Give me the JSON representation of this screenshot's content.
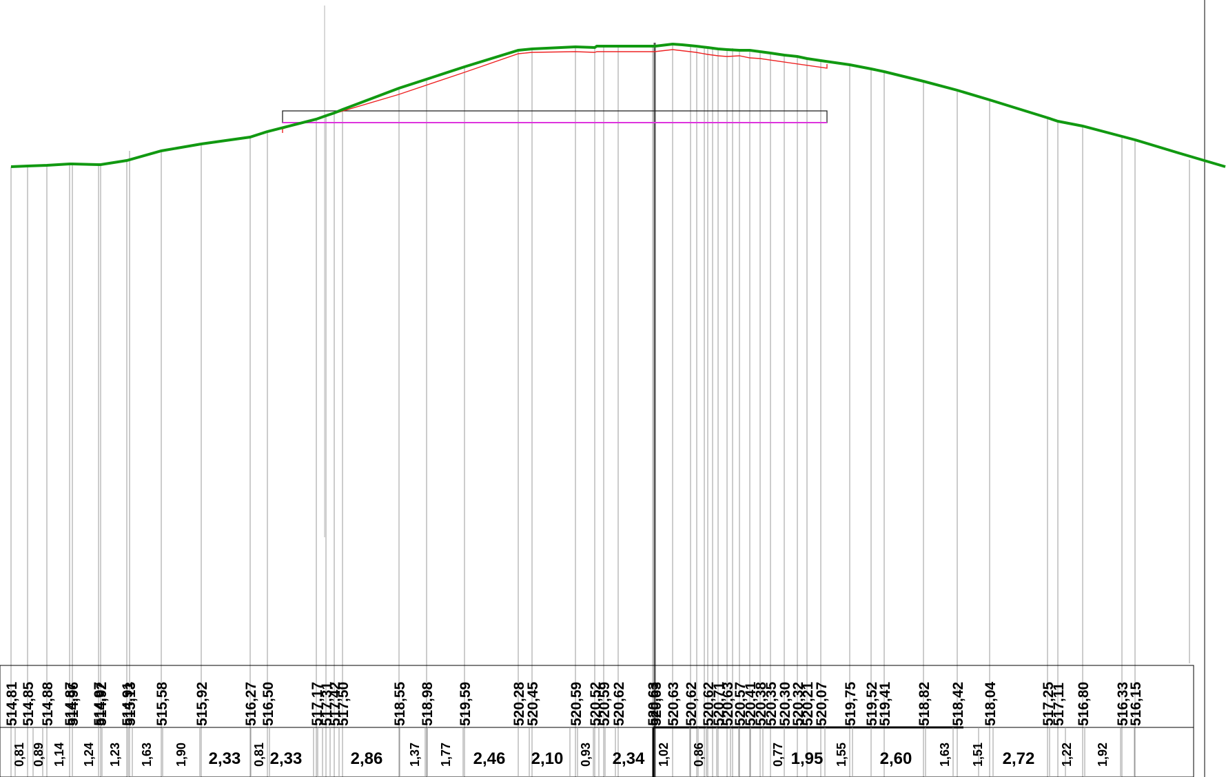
{
  "elevations": [
    "514,81",
    "514,85",
    "514,88",
    "514,87",
    "514,96",
    "514,97",
    "514,92",
    "514,91",
    "515,13",
    "515,58",
    "515,92",
    "516,27",
    "516,50",
    "517,17",
    "517,31",
    "517,42",
    "517,50",
    "518,55",
    "518,98",
    "519,59",
    "520,28",
    "520,45",
    "520,59",
    "520,52",
    "520,59",
    "520,62",
    "520,63",
    "520,63",
    "520,63",
    "520,62",
    "520,62",
    "520,71",
    "520,63",
    "520,57",
    "520,41",
    "520,38",
    "520,35",
    "520,30",
    "520,32",
    "520,21",
    "520,07",
    "519,75",
    "519,52",
    "519,41",
    "518,82",
    "518,42",
    "518,04",
    "517,25",
    "517,11",
    "516,80",
    "516,33",
    "516,15"
  ],
  "distances": [
    "0,81",
    "0,89",
    "1,14",
    "1,24",
    "1,23",
    "1,63",
    "1,90",
    "2,33",
    "0,81",
    "2,33",
    "2,86",
    "1,37",
    "1,77",
    "2,46",
    "2,10",
    "0,93",
    "2,34",
    "1,02",
    "0,86",
    "0,77",
    "1,95",
    "1,55",
    "2,60",
    "1,63",
    "1,51",
    "2,72",
    "1,22",
    "1,92"
  ],
  "colors": {
    "terrain": "#119911",
    "design": "#ee2222",
    "level": "#dd33dd",
    "grid": "#9a9a9a",
    "frame": "#000000"
  }
}
